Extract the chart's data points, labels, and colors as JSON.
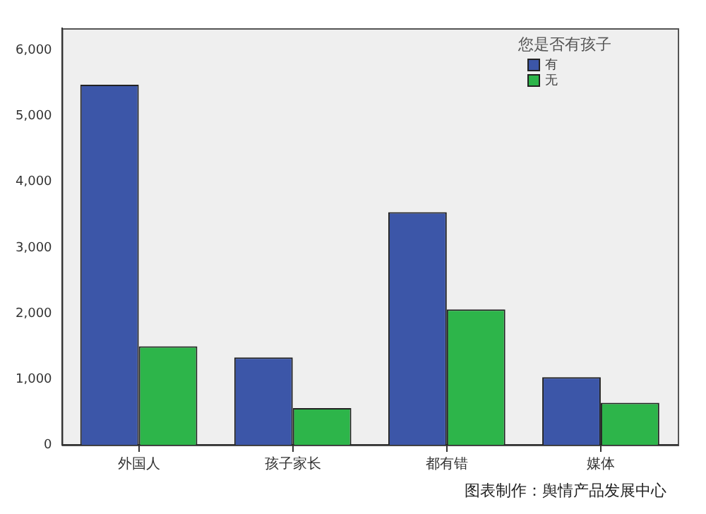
{
  "chart_data": {
    "type": "bar",
    "categories": [
      "外国人",
      "孩子家长",
      "都有错",
      "媒体"
    ],
    "series": [
      {
        "name": "有",
        "color": "#3c56a8",
        "values": [
          5480,
          1330,
          3540,
          1030
        ]
      },
      {
        "name": "无",
        "color": "#2db54a",
        "values": [
          1500,
          560,
          2060,
          640
        ]
      }
    ],
    "legend_title": "您是否有孩子",
    "legend": "top right",
    "ylim": [
      0,
      6340
    ],
    "yticks": [
      {
        "value": 0,
        "label": "0"
      },
      {
        "value": 1000,
        "label": "1,000"
      },
      {
        "value": 2000,
        "label": "2,000"
      },
      {
        "value": 3000,
        "label": "3,000"
      },
      {
        "value": 4000,
        "label": "4,000"
      },
      {
        "value": 5000,
        "label": "5,000"
      },
      {
        "value": 6000,
        "label": "6,000"
      }
    ],
    "grid": false,
    "annotations": [
      "图表制作：舆情产品发展中心"
    ]
  }
}
